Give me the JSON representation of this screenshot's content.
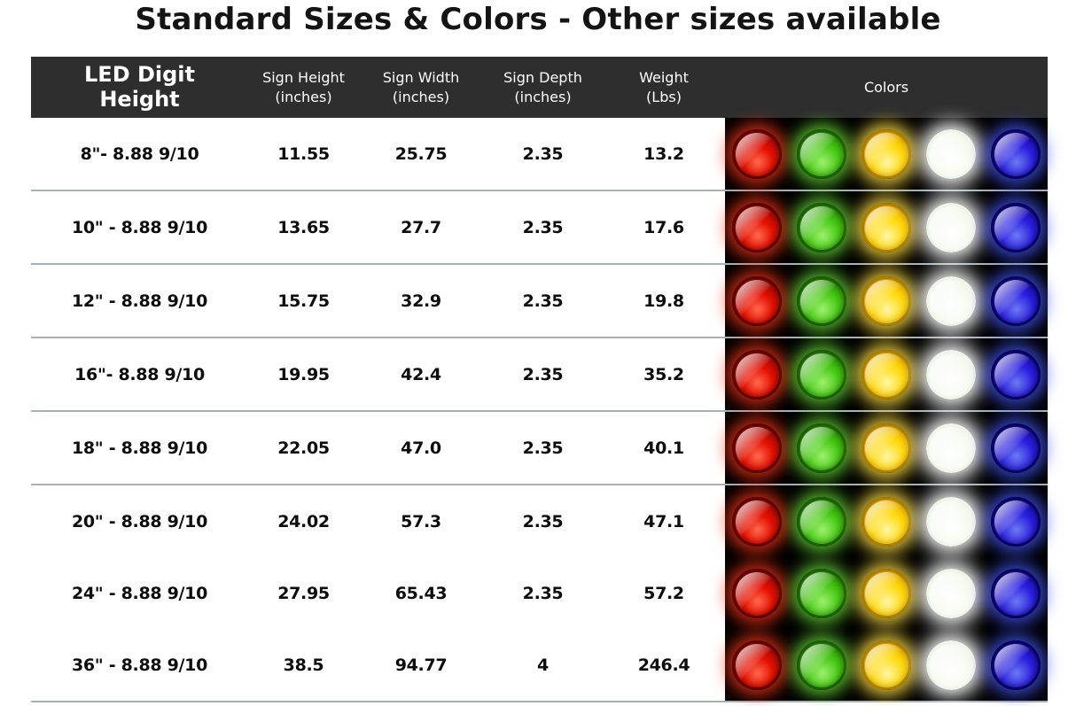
{
  "page": {
    "title": "Standard Sizes & Colors - Other sizes available"
  },
  "table": {
    "columns": {
      "digit_height": {
        "label": "LED Digit Height"
      },
      "sign_height": {
        "label": "Sign Height",
        "unit": "(inches)"
      },
      "sign_width": {
        "label": "Sign Width",
        "unit": "(inches)"
      },
      "sign_depth": {
        "label": "Sign Depth",
        "unit": "(inches)"
      },
      "weight": {
        "label": "Weight",
        "unit": "(Lbs)"
      },
      "colors": {
        "label": "Colors"
      }
    },
    "rows": [
      {
        "digit_height": "8\"- 8.88 9/10",
        "sign_height": "11.55",
        "sign_width": "25.75",
        "sign_depth": "2.35",
        "weight": "13.2"
      },
      {
        "digit_height": "10\" - 8.88 9/10",
        "sign_height": "13.65",
        "sign_width": "27.7",
        "sign_depth": "2.35",
        "weight": "17.6"
      },
      {
        "digit_height": "12\" - 8.88 9/10",
        "sign_height": "15.75",
        "sign_width": "32.9",
        "sign_depth": "2.35",
        "weight": "19.8"
      },
      {
        "digit_height": "16\"- 8.88 9/10",
        "sign_height": "19.95",
        "sign_width": "42.4",
        "sign_depth": "2.35",
        "weight": "35.2"
      },
      {
        "digit_height": "18\" - 8.88 9/10",
        "sign_height": "22.05",
        "sign_width": "47.0",
        "sign_depth": "2.35",
        "weight": "40.1"
      },
      {
        "digit_height": "20\" - 8.88 9/10",
        "sign_height": "24.02",
        "sign_width": "57.3",
        "sign_depth": "2.35",
        "weight": "47.1"
      },
      {
        "digit_height": "24\" - 8.88 9/10",
        "sign_height": "27.95",
        "sign_width": "65.43",
        "sign_depth": "2.35",
        "weight": "57.2"
      },
      {
        "digit_height": "36\" - 8.88 9/10",
        "sign_height": "38.5",
        "sign_width": "94.77",
        "sign_depth": "4",
        "weight": "246.4"
      }
    ],
    "led_colors": [
      {
        "name": "red",
        "hex": "#e51000"
      },
      {
        "name": "green",
        "hex": "#46c814"
      },
      {
        "name": "yellow",
        "hex": "#ffd90a"
      },
      {
        "name": "white",
        "hex": "#ffffff"
      },
      {
        "name": "blue",
        "hex": "#2a1ee0"
      }
    ],
    "style": {
      "header_bg": "#2e2e2e",
      "header_text": "#ffffff",
      "separator": "#a7b1ba",
      "swatch_bg": "#000000"
    }
  },
  "chart_data": {
    "type": "table",
    "title": "Standard Sizes & Colors - Other sizes available",
    "columns": [
      "LED Digit Height",
      "Sign Height (inches)",
      "Sign Width (inches)",
      "Sign Depth (inches)",
      "Weight (Lbs)",
      "Colors"
    ],
    "rows": [
      [
        "8\"- 8.88 9/10",
        11.55,
        25.75,
        2.35,
        13.2,
        "red, green, yellow, white, blue"
      ],
      [
        "10\" - 8.88 9/10",
        13.65,
        27.7,
        2.35,
        17.6,
        "red, green, yellow, white, blue"
      ],
      [
        "12\" - 8.88 9/10",
        15.75,
        32.9,
        2.35,
        19.8,
        "red, green, yellow, white, blue"
      ],
      [
        "16\"- 8.88 9/10",
        19.95,
        42.4,
        2.35,
        35.2,
        "red, green, yellow, white, blue"
      ],
      [
        "18\" - 8.88 9/10",
        22.05,
        47.0,
        2.35,
        40.1,
        "red, green, yellow, white, blue"
      ],
      [
        "20\" - 8.88 9/10",
        24.02,
        57.3,
        2.35,
        47.1,
        "red, green, yellow, white, blue"
      ],
      [
        "24\" - 8.88 9/10",
        27.95,
        65.43,
        2.35,
        57.2,
        "red, green, yellow, white, blue"
      ],
      [
        "36\" - 8.88 9/10",
        38.5,
        94.77,
        4,
        246.4,
        "red, green, yellow, white, blue"
      ]
    ],
    "layout_hints": {
      "grid": "horizontal separators between rows 1-6",
      "header_style": "dark band, white text"
    }
  }
}
